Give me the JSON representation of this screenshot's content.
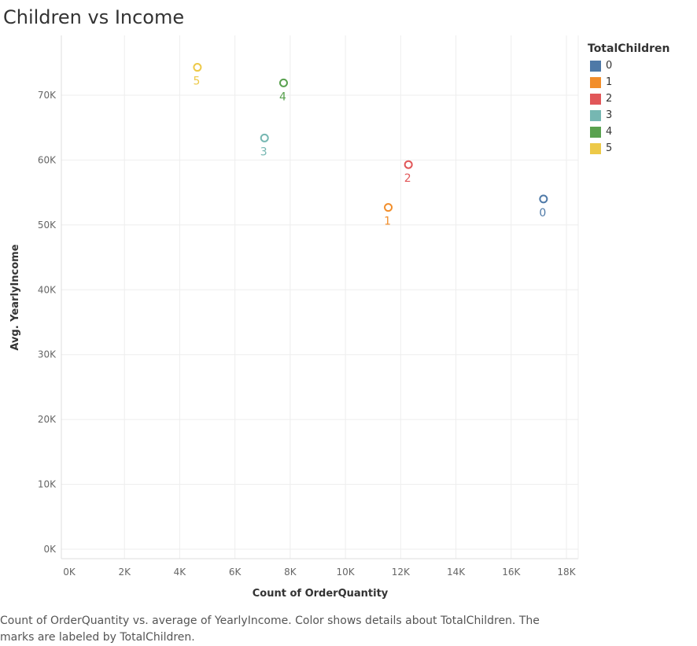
{
  "title": "Children vs Income",
  "caption": "Count of OrderQuantity vs. average of YearlyIncome.  Color shows details about TotalChildren.  The marks are labeled by TotalChildren.",
  "legend": {
    "title": "TotalChildren",
    "items": [
      {
        "label": "0",
        "color": "#4e79a7"
      },
      {
        "label": "1",
        "color": "#f28e2b"
      },
      {
        "label": "2",
        "color": "#e15759"
      },
      {
        "label": "3",
        "color": "#76b7b2"
      },
      {
        "label": "4",
        "color": "#59a14f"
      },
      {
        "label": "5",
        "color": "#edc948"
      }
    ]
  },
  "chart_data": {
    "type": "scatter",
    "title": "Children vs Income",
    "xlabel": "Count of OrderQuantity",
    "ylabel": "Avg. YearlyIncome",
    "xlim": [
      0,
      18000
    ],
    "ylim": [
      0,
      75000
    ],
    "x_ticks": [
      {
        "value": 0,
        "label": "0K"
      },
      {
        "value": 2000,
        "label": "2K"
      },
      {
        "value": 4000,
        "label": "4K"
      },
      {
        "value": 6000,
        "label": "6K"
      },
      {
        "value": 8000,
        "label": "8K"
      },
      {
        "value": 10000,
        "label": "10K"
      },
      {
        "value": 12000,
        "label": "12K"
      },
      {
        "value": 14000,
        "label": "14K"
      },
      {
        "value": 16000,
        "label": "16K"
      },
      {
        "value": 18000,
        "label": "18K"
      }
    ],
    "y_ticks": [
      {
        "value": 0,
        "label": "0K"
      },
      {
        "value": 10000,
        "label": "10K"
      },
      {
        "value": 20000,
        "label": "20K"
      },
      {
        "value": 30000,
        "label": "30K"
      },
      {
        "value": 40000,
        "label": "40K"
      },
      {
        "value": 50000,
        "label": "50K"
      },
      {
        "value": 60000,
        "label": "60K"
      },
      {
        "value": 70000,
        "label": "70K"
      }
    ],
    "grid": true,
    "legend_position": "right",
    "points": [
      {
        "label": "0",
        "x": 17170,
        "y": 54000,
        "color": "#4e79a7"
      },
      {
        "label": "1",
        "x": 11550,
        "y": 52700,
        "color": "#f28e2b"
      },
      {
        "label": "2",
        "x": 12280,
        "y": 59300,
        "color": "#e15759"
      },
      {
        "label": "3",
        "x": 7070,
        "y": 63400,
        "color": "#76b7b2"
      },
      {
        "label": "4",
        "x": 7760,
        "y": 71900,
        "color": "#59a14f"
      },
      {
        "label": "5",
        "x": 4640,
        "y": 74300,
        "color": "#edc948"
      }
    ]
  }
}
